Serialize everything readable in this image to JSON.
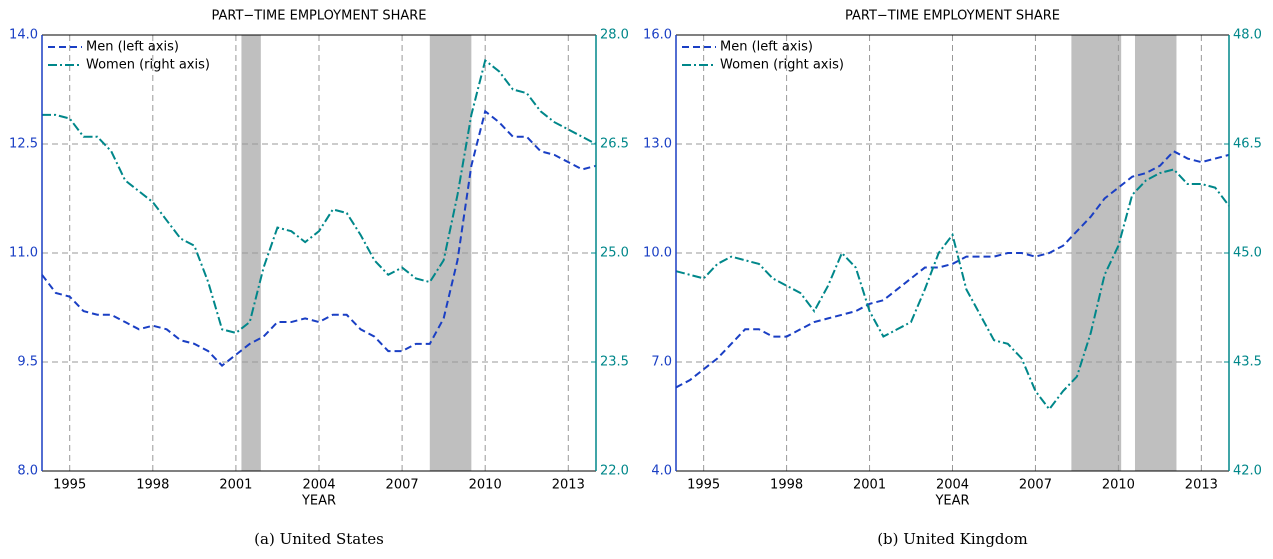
{
  "chart_data": [
    {
      "type": "line",
      "title": "PART−TIME EMPLOYMENT SHARE",
      "xlabel": "YEAR",
      "caption": "(a) United States",
      "x": [
        1994,
        1994.5,
        1995,
        1995.5,
        1996,
        1996.5,
        1997,
        1997.5,
        1998,
        1998.5,
        1999,
        1999.5,
        2000,
        2000.5,
        2001,
        2001.5,
        2002,
        2002.5,
        2003,
        2003.5,
        2004,
        2004.5,
        2005,
        2005.5,
        2006,
        2006.5,
        2007,
        2007.5,
        2008,
        2008.5,
        2009,
        2009.5,
        2010,
        2010.5,
        2011,
        2011.5,
        2012,
        2012.5,
        2013,
        2013.5,
        2014
      ],
      "series": [
        {
          "name": "Men (left axis)",
          "color": "#1a3fc4",
          "axis": "y",
          "values": [
            10.7,
            10.45,
            10.4,
            10.2,
            10.15,
            10.15,
            10.05,
            9.95,
            10.0,
            9.95,
            9.8,
            9.75,
            9.65,
            9.45,
            9.6,
            9.75,
            9.85,
            10.05,
            10.05,
            10.1,
            10.05,
            10.15,
            10.15,
            9.95,
            9.85,
            9.65,
            9.65,
            9.75,
            9.75,
            10.1,
            10.9,
            12.2,
            12.95,
            12.8,
            12.6,
            12.6,
            12.4,
            12.35,
            12.25,
            12.15,
            12.2
          ]
        },
        {
          "name": "Women (right axis)",
          "color": "#00878a",
          "axis": "y2",
          "values": [
            26.9,
            26.9,
            26.85,
            26.6,
            26.6,
            26.4,
            26.0,
            25.85,
            25.7,
            25.45,
            25.2,
            25.1,
            24.6,
            23.95,
            23.9,
            24.05,
            24.8,
            25.35,
            25.3,
            25.15,
            25.3,
            25.6,
            25.55,
            25.25,
            24.9,
            24.7,
            24.8,
            24.65,
            24.6,
            24.9,
            25.8,
            26.9,
            27.65,
            27.5,
            27.25,
            27.2,
            26.95,
            26.8,
            26.7,
            26.6,
            26.5
          ]
        }
      ],
      "xlim": [
        1994,
        2014
      ],
      "xticks": [
        1995,
        1998,
        2001,
        2004,
        2007,
        2010,
        2013
      ],
      "ylim": [
        8,
        14
      ],
      "yticks": [
        {
          "value": 8,
          "label": "8.0"
        },
        9.5,
        {
          "value": 11,
          "label": "11.0"
        },
        12.5,
        {
          "value": 14,
          "label": "14.0"
        }
      ],
      "y2lim": [
        22,
        28
      ],
      "y2ticks": [
        {
          "value": 22,
          "label": "22.0"
        },
        23.5,
        {
          "value": 25,
          "label": "25.0"
        },
        26.5,
        {
          "value": 28,
          "label": "28.0"
        }
      ],
      "shaded_regions": [
        [
          2001.2,
          2001.9
        ],
        [
          2008.0,
          2009.5
        ]
      ],
      "grid": true,
      "legend": "upper-left"
    },
    {
      "type": "line",
      "title": "PART−TIME EMPLOYMENT SHARE",
      "xlabel": "YEAR",
      "caption": "(b) United Kingdom",
      "x": [
        1994,
        1994.5,
        1995,
        1995.5,
        1996,
        1996.5,
        1997,
        1997.5,
        1998,
        1998.5,
        1999,
        1999.5,
        2000,
        2000.5,
        2001,
        2001.5,
        2002,
        2002.5,
        2003,
        2003.5,
        2004,
        2004.5,
        2005,
        2005.5,
        2006,
        2006.5,
        2007,
        2007.5,
        2008,
        2008.5,
        2009,
        2009.5,
        2010,
        2010.5,
        2011,
        2011.5,
        2012,
        2012.5,
        2013,
        2013.5,
        2014
      ],
      "series": [
        {
          "name": "Men (left axis)",
          "color": "#1a3fc4",
          "axis": "y",
          "values": [
            6.3,
            6.5,
            6.8,
            7.1,
            7.5,
            7.9,
            7.9,
            7.7,
            7.7,
            7.9,
            8.1,
            8.2,
            8.3,
            8.4,
            8.6,
            8.7,
            9.0,
            9.3,
            9.6,
            9.6,
            9.7,
            9.9,
            9.9,
            9.9,
            10.0,
            10.0,
            9.9,
            10.0,
            10.2,
            10.6,
            11.0,
            11.5,
            11.8,
            12.1,
            12.2,
            12.4,
            12.8,
            12.6,
            12.5,
            12.6,
            12.7
          ]
        },
        {
          "name": "Women (right axis)",
          "color": "#00878a",
          "axis": "y2",
          "values": [
            44.75,
            44.7,
            44.65,
            44.85,
            44.95,
            44.9,
            44.85,
            44.65,
            44.55,
            44.45,
            44.2,
            44.55,
            45.0,
            44.8,
            44.2,
            43.85,
            43.95,
            44.05,
            44.5,
            45.0,
            45.25,
            44.5,
            44.15,
            43.8,
            43.75,
            43.55,
            43.1,
            42.85,
            43.1,
            43.3,
            43.9,
            44.7,
            45.1,
            45.8,
            46.0,
            46.1,
            46.15,
            45.95,
            45.95,
            45.9,
            45.65
          ]
        }
      ],
      "xlim": [
        1994,
        2014
      ],
      "xticks": [
        1995,
        1998,
        2001,
        2004,
        2007,
        2010,
        2013
      ],
      "ylim": [
        4,
        16
      ],
      "yticks": [
        {
          "value": 4,
          "label": "4.0"
        },
        {
          "value": 7,
          "label": "7.0"
        },
        {
          "value": 10,
          "label": "10.0"
        },
        {
          "value": 13,
          "label": "13.0"
        },
        {
          "value": 16,
          "label": "16.0"
        }
      ],
      "y2lim": [
        42,
        48
      ],
      "y2ticks": [
        {
          "value": 42,
          "label": "42.0"
        },
        43.5,
        {
          "value": 45,
          "label": "45.0"
        },
        46.5,
        {
          "value": 48,
          "label": "48.0"
        }
      ],
      "shaded_regions": [
        [
          2008.3,
          2010.1
        ],
        [
          2010.6,
          2012.1
        ]
      ],
      "grid": true,
      "legend": "upper-left"
    }
  ]
}
